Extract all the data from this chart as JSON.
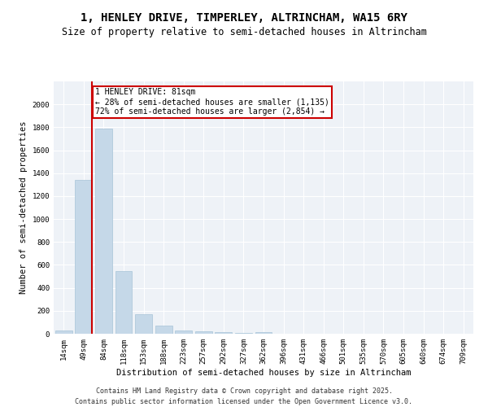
{
  "title": "1, HENLEY DRIVE, TIMPERLEY, ALTRINCHAM, WA15 6RY",
  "subtitle": "Size of property relative to semi-detached houses in Altrincham",
  "xlabel": "Distribution of semi-detached houses by size in Altrincham",
  "ylabel": "Number of semi-detached properties",
  "categories": [
    "14sqm",
    "49sqm",
    "84sqm",
    "118sqm",
    "153sqm",
    "188sqm",
    "223sqm",
    "257sqm",
    "292sqm",
    "327sqm",
    "362sqm",
    "396sqm",
    "431sqm",
    "466sqm",
    "501sqm",
    "535sqm",
    "570sqm",
    "605sqm",
    "640sqm",
    "674sqm",
    "709sqm"
  ],
  "values": [
    25,
    1340,
    1790,
    545,
    170,
    70,
    30,
    20,
    15,
    5,
    15,
    0,
    0,
    0,
    0,
    0,
    0,
    0,
    0,
    0,
    0
  ],
  "bar_color": "#c5d8e8",
  "bar_edge_color": "#a8c4d8",
  "annotation_title": "1 HENLEY DRIVE: 81sqm",
  "annotation_line1": "← 28% of semi-detached houses are smaller (1,135)",
  "annotation_line2": "72% of semi-detached houses are larger (2,854) →",
  "annotation_box_color": "#ffffff",
  "annotation_box_edge_color": "#cc0000",
  "vline_color": "#cc0000",
  "vline_x_index": 1,
  "ylim": [
    0,
    2200
  ],
  "yticks": [
    0,
    200,
    400,
    600,
    800,
    1000,
    1200,
    1400,
    1600,
    1800,
    2000
  ],
  "bg_color": "#eef2f7",
  "footer_line1": "Contains HM Land Registry data © Crown copyright and database right 2025.",
  "footer_line2": "Contains public sector information licensed under the Open Government Licence v3.0.",
  "title_fontsize": 10,
  "subtitle_fontsize": 8.5,
  "axis_label_fontsize": 7.5,
  "tick_fontsize": 6.5,
  "annotation_fontsize": 7,
  "footer_fontsize": 6
}
